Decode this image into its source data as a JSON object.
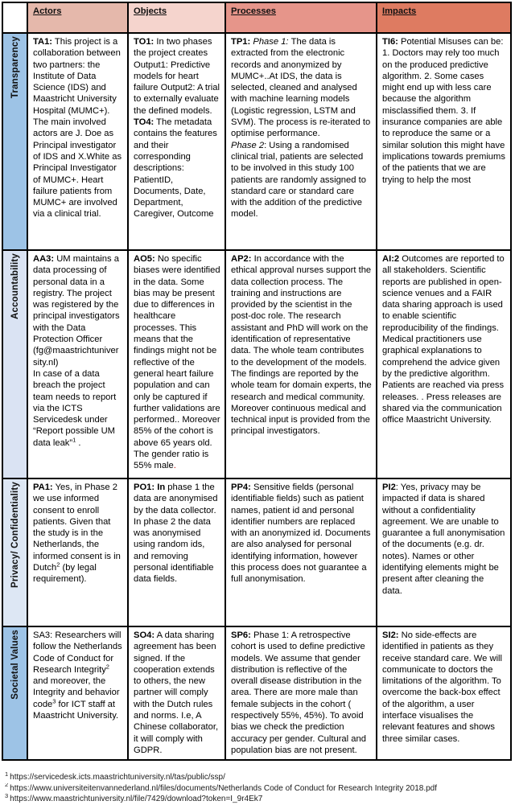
{
  "table": {
    "columns": [
      {
        "key": "actors",
        "label": "Actors",
        "color": "#e5b8ab"
      },
      {
        "key": "objects",
        "label": "Objects",
        "color": "#f5d4cd"
      },
      {
        "key": "processes",
        "label": "Processes",
        "color": "#e6958a"
      },
      {
        "key": "impacts",
        "label": "Impacts",
        "color": "#de7b61"
      }
    ],
    "rows": [
      {
        "label": "Transparency",
        "label_color": "#9dc3e6",
        "cells": {
          "actors": [
            {
              "style": "b",
              "text": "TA1:"
            },
            {
              "style": "n",
              "text": " This project is a collaboration between two partners: the Institute of Data Science (IDS) and Maastricht University Hospital (MUMC+). The main involved actors are J. Doe as Principal investigator of IDS and X.White as Principal Investigator of MUMC+. Heart failure patients from MUMC+ are involved via a clinical trial."
            }
          ],
          "objects": [
            {
              "style": "b",
              "text": "TO1:"
            },
            {
              "style": "n",
              "text": " In two phases the project creates Output1: Predictive models for heart failure Output2: A trial to externally evaluate the defined models."
            },
            {
              "style": "br"
            },
            {
              "style": "b",
              "text": "TO4:"
            },
            {
              "style": "n",
              "text": " The metadata contains the features and their corresponding descriptions: PatientID, Documents, Date, Department, Caregiver, Outcome"
            }
          ],
          "processes": [
            {
              "style": "b",
              "text": "TP1: "
            },
            {
              "style": "i",
              "text": "Phase 1: "
            },
            {
              "style": "n",
              "text": "The data is extracted from the electronic records and anonymized by MUMC+..At IDS, the data is selected, cleaned and analysed with machine learning models (Logistic regression, LSTM and SVM).  The process is re-iterated to optimise performance."
            },
            {
              "style": "br"
            },
            {
              "style": "i",
              "text": "Phase 2"
            },
            {
              "style": "n",
              "text": ": Using a randomised clinical trial, patients are selected to be involved in this study  100 patients are randomly assigned to standard care or standard care with the addition of the predictive model."
            }
          ],
          "impacts": [
            {
              "style": "b",
              "text": "TI6:"
            },
            {
              "style": "n",
              "text": " Potential Misuses can be: 1. Doctors may  rely too much on the produced predictive algorithm. 2. Some cases might end up with less care because the algorithm misclassified them. 3. If insurance companies are able to reproduce the same or a similar solution this might have implications towards premiums of the patients that we are trying to help the most"
            }
          ]
        }
      },
      {
        "label": "Accountability",
        "label_color": "#dae3f3",
        "cells": {
          "actors": [
            {
              "style": "b",
              "text": "AA3:"
            },
            {
              "style": "n",
              "text": " UM  maintains a data processing of personal data in a registry. The project was registered by the principal investigators with the Data Protection Officer (fg@maastrichtuniversity.nl)"
            },
            {
              "style": "br"
            },
            {
              "style": "n",
              "text": "In case of a data breach the project team needs to report via the ICTS Servicedesk under “Report possible UM data leak”"
            },
            {
              "style": "sup",
              "text": "1"
            },
            {
              "style": "n",
              "text": " ."
            }
          ],
          "objects": [
            {
              "style": "b",
              "text": "AO5:"
            },
            {
              "style": "n",
              "text": " No specific biases were identified in the data. Some bias may be present due to differences in healthcare processes. This means that the findings might not be reflective of the general heart failure population and can only be captured if further validations are performed.. Moreover 85% of the cohort is above 65 years old. The gender ratio is 55% male"
            },
            {
              "style": "red",
              "text": "."
            }
          ],
          "processes": [
            {
              "style": "b",
              "text": "AP2:"
            },
            {
              "style": "n",
              "text": " In accordance with the ethical approval nurses support the  data collection process. The training and instructions are provided by the scientist in the post-doc role. The research assistant and PhD will work on the identification of representative data. The whole team contributes to the development of the models. The findings are reported by the whole team for domain experts, the research and medical community. Moreover continuous medical and technical input is provided from the principal investigators."
            }
          ],
          "impacts": [
            {
              "style": "b",
              "text": "AI:2"
            },
            {
              "style": "n",
              "text": " Outcomes are reported to all  stakeholders. Scientific reports are published in open-science venues and a FAIR data sharing approach is used to enable scientific reproducibility of the findings. Medical practitioners use graphical explanations to comprehend  the advice given by the predictive algorithm. Patients are reached via press releases. . Press releases  are shared via the communication office Maastricht University."
            }
          ]
        }
      },
      {
        "label": "Privacy/ Confidentiality",
        "label_color": "#dde7f4",
        "cells": {
          "actors": [
            {
              "style": "b",
              "text": "PA1:"
            },
            {
              "style": "n",
              "text": " Yes, in Phase 2 we use informed consent to enroll patients. Given that the study is in the Netherlands, the informed consent is in Dutch"
            },
            {
              "style": "sup",
              "text": "2"
            },
            {
              "style": "n",
              "text": " (by legal requirement)."
            }
          ],
          "objects": [
            {
              "style": "b",
              "text": "PO1: In"
            },
            {
              "style": "n",
              "text": " phase 1 the data are anonymised by the data collector. In phase 2 the data was anonymised using random ids, and removing personal identifiable data fields."
            }
          ],
          "processes": [
            {
              "style": "b",
              "text": "PP4:"
            },
            {
              "style": "n",
              "text": " Sensitive fields (personal identifiable fields) such as patient names, patient id and personal identifier numbers are replaced with an anonymized id. Documents are also analysed for personal identifying information, however this process does not guarantee a full anonymisation."
            }
          ],
          "impacts": [
            {
              "style": "b",
              "text": "PI2"
            },
            {
              "style": "n",
              "text": ": Yes, privacy may be impacted if data is shared without a confidentiality agreement. We are unable to guarantee a full anonymisation of the documents (e.g. dr. notes). Names or other identifying elements might be present after cleaning the data."
            }
          ]
        }
      },
      {
        "label": "Societal Values",
        "label_color": "#9dc3e6",
        "cells": {
          "actors": [
            {
              "style": "n",
              "text": "SA3:  Researchers will follow the Netherlands Code of Conduct for Research Integrity"
            },
            {
              "style": "sup",
              "text": "2"
            },
            {
              "style": "n",
              "text": " and moreover, the Integrity and behavior code"
            },
            {
              "style": "sup",
              "text": "3"
            },
            {
              "style": "n",
              "text": " for ICT staff at Maastricht University."
            }
          ],
          "objects": [
            {
              "style": "b",
              "text": "SO4:"
            },
            {
              "style": "n",
              "text": " A data sharing agreement has been signed. If the cooperation extends to others, the new partner  will  comply with the Dutch rules and norms. I.e, A Chinese  collaborator, it will comply with GDPR."
            }
          ],
          "processes": [
            {
              "style": "b",
              "text": "SP6:"
            },
            {
              "style": "n",
              "text": " Phase 1:  A  retrospective cohort is used to define predictive models. We assume that gender distribution is reflective of the overall disease distribution in the area. There are  more male than female subjects in the cohort ( respectively 55%, 45%). To avoid bias we check  the prediction accuracy per gender.  Cultural and population bias are not present."
            }
          ],
          "impacts": [
            {
              "style": "b",
              "text": "SI2:"
            },
            {
              "style": "n",
              "text": " No  side-effects are identified in  patients as they receive  standard care. We will communicate to doctors  the limitations of the algorithm. To overcome the back-box effect of the algorithm, a user interface visualises  the relevant features and shows three similar cases."
            }
          ]
        }
      }
    ]
  },
  "footnotes": [
    {
      "num": "1",
      "text": "https://servicedesk.icts.maastrichtuniversity.nl/tas/public/ssp/"
    },
    {
      "num": "2",
      "text": "https://www.universiteitenvannederland.nl/files/documents/Netherlands Code of Conduct for Research Integrity 2018.pdf"
    },
    {
      "num": "3",
      "text": "https://www.maastrichtuniversity.nl/file/7429/download?token=I_9r4Ek7"
    }
  ]
}
